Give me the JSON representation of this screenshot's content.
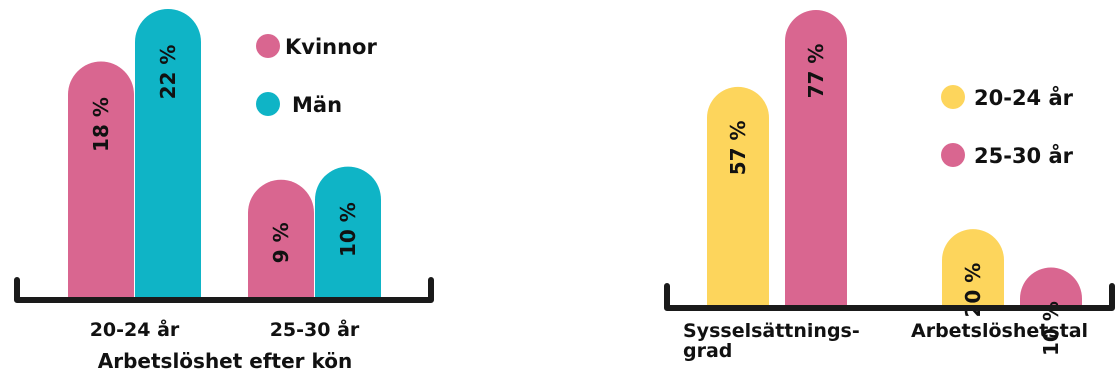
{
  "chart_data": [
    {
      "type": "bar",
      "title": "Arbetslöshet efter kön",
      "categories": [
        "20-24 år",
        "25-30 år"
      ],
      "series": [
        {
          "name": "Kvinnor",
          "values": [
            18,
            9
          ],
          "labels": [
            "18 %",
            "9 %"
          ],
          "color": "#D96690"
        },
        {
          "name": "Män",
          "values": [
            22,
            10
          ],
          "labels": [
            "22 %",
            "10 %"
          ],
          "color": "#0FB4C6"
        }
      ],
      "ylim": [
        0,
        24
      ],
      "grid": false,
      "legend": "top-right",
      "unit": "%"
    },
    {
      "type": "bar",
      "title": "",
      "categories": [
        "Sysselsättnings-\ngrad",
        "Arbetslöshetstal"
      ],
      "series": [
        {
          "name": "20-24 år",
          "values": [
            57,
            20
          ],
          "labels": [
            "57 %",
            "20 %"
          ],
          "color": "#FDD55C"
        },
        {
          "name": "25-30 år",
          "values": [
            77,
            10
          ],
          "labels": [
            "77 %",
            "10 %"
          ],
          "color": "#D96690"
        }
      ],
      "ylim": [
        0,
        80
      ],
      "grid": false,
      "legend": "right",
      "unit": "%"
    }
  ]
}
